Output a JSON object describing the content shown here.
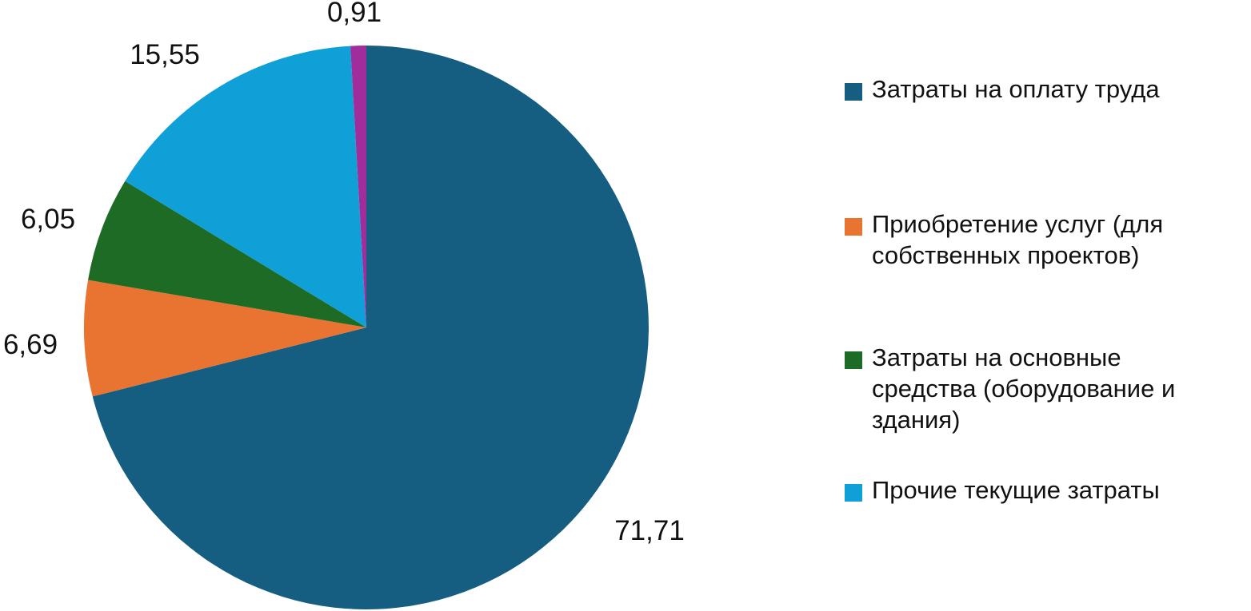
{
  "chart_data": {
    "type": "pie",
    "title": "",
    "legend_position": "right",
    "slices": [
      {
        "name": "Затраты на оплату труда",
        "value": 71.71,
        "label": "71,71",
        "color": "#165E81"
      },
      {
        "name": "Приобретение услуг (для собственных проектов)",
        "value": 6.69,
        "label": "6,69",
        "color": "#E97330"
      },
      {
        "name": "Затраты на основные средства (оборудование и здания)",
        "value": 6.05,
        "label": "6,05",
        "color": "#1E6B25"
      },
      {
        "name": "Прочие текущие затраты",
        "value": 15.55,
        "label": "15,55",
        "color": "#10A0D8"
      },
      {
        "name": "",
        "value": 0.91,
        "label": "0,91",
        "color": "#A12C9B"
      }
    ]
  },
  "legend": {
    "items": [
      {
        "label": "Затраты на оплату труда",
        "color": "#165E81"
      },
      {
        "label": "Приобретение услуг (для\nсобственных проектов)",
        "color": "#E97330"
      },
      {
        "label": "Затраты на основные\nсредства (оборудование и\nздания)",
        "color": "#1E6B25"
      },
      {
        "label": "Прочие текущие затраты",
        "color": "#10A0D8"
      }
    ]
  }
}
